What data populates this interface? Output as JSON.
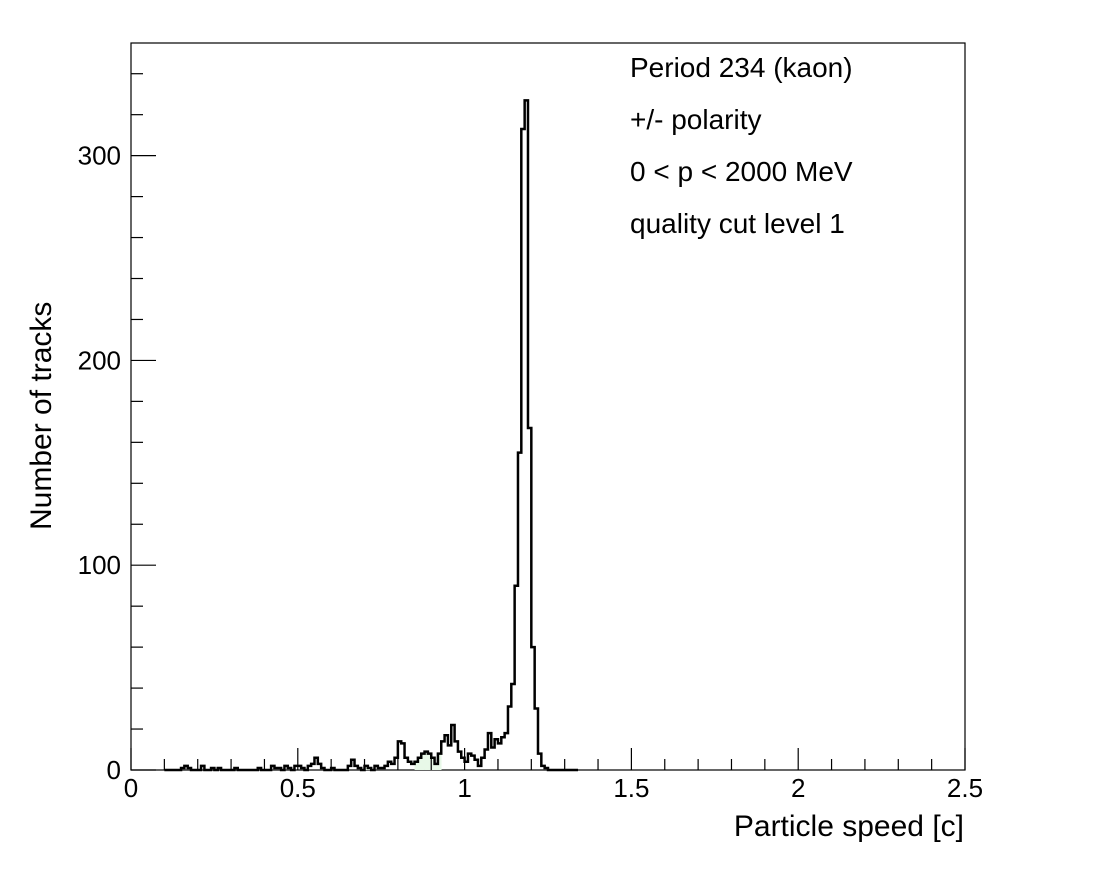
{
  "chart_data": {
    "type": "histogram",
    "xlabel": "Particle speed [c]",
    "ylabel": "Number of tracks",
    "xlim": [
      0,
      2.5
    ],
    "ylim": [
      0,
      355
    ],
    "x_ticks": [
      {
        "value": 0,
        "label": "0"
      },
      {
        "value": 0.5,
        "label": "0.5"
      },
      {
        "value": 1,
        "label": "1"
      },
      {
        "value": 1.5,
        "label": "1.5"
      },
      {
        "value": 2,
        "label": "2"
      },
      {
        "value": 2.5,
        "label": "2.5"
      }
    ],
    "y_ticks": [
      {
        "value": 0,
        "label": "0"
      },
      {
        "value": 100,
        "label": "100"
      },
      {
        "value": 200,
        "label": "200"
      },
      {
        "value": 300,
        "label": "300"
      }
    ],
    "bin_width": 0.01,
    "bin_start": 0.1,
    "counts": [
      0,
      0,
      0,
      0,
      0,
      1,
      2,
      1,
      0,
      0,
      0,
      2,
      0,
      0,
      1,
      0,
      1,
      0,
      0,
      0,
      0,
      1,
      0,
      0,
      0,
      0,
      0,
      0,
      1,
      0,
      0,
      0,
      2,
      1,
      1,
      0,
      2,
      1,
      0,
      2,
      2,
      1,
      0,
      2,
      3,
      6,
      3,
      1,
      0,
      0,
      1,
      0,
      0,
      0,
      0,
      2,
      5,
      2,
      1,
      0,
      2,
      1,
      0,
      2,
      1,
      1,
      2,
      4,
      3,
      6,
      14,
      13,
      6,
      4,
      3,
      4,
      6,
      8,
      9,
      8,
      6,
      3,
      8,
      14,
      17,
      12,
      22,
      14,
      9,
      6,
      4,
      8,
      7,
      5,
      2,
      6,
      10,
      18,
      11,
      15,
      13,
      16,
      18,
      31,
      42,
      90,
      155,
      313,
      327,
      167,
      60,
      30,
      8,
      2,
      1,
      0,
      0,
      0,
      0,
      0,
      0,
      0,
      0,
      0
    ],
    "fill_ranges": [
      [
        0.7,
        0.73
      ],
      [
        0.85,
        0.93
      ]
    ],
    "line_color": "#000000",
    "fill_color": "#e8f8e8",
    "annotations": [
      "Period 234 (kaon)",
      "+/- polarity",
      "0 < p < 2000 MeV",
      "quality cut level 1"
    ]
  }
}
